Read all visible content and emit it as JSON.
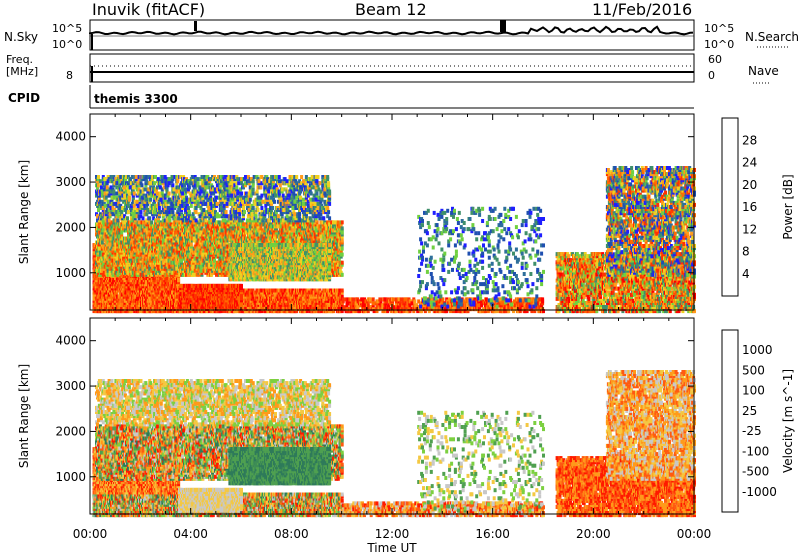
{
  "header": {
    "station": "Inuvik (fitACF)",
    "beam": "Beam 12",
    "date": "11/Feb/2016"
  },
  "summary": {
    "nsky_label": "N.Sky",
    "nsky_ticks": [
      "10^5",
      "10^0"
    ],
    "nsearch_label": "N.Search",
    "nsearch_ticks": [
      "10^5",
      "10^0"
    ],
    "freq_label": "Freq.",
    "freq_unit": "[MHz]",
    "freq_ticks": [
      "8"
    ],
    "nave_label": "Nave",
    "nave_ticks": [
      "60",
      "0"
    ],
    "cpid_label": "CPID",
    "cpid_value": "themis 3300"
  },
  "chart_data": [
    {
      "type": "heatmap",
      "title": "",
      "ylabel": "Slant Range [km]",
      "xlabel": "",
      "ylim": [
        180,
        4500
      ],
      "xlim": [
        "00:00",
        "24:00"
      ],
      "y_ticks": [
        1000,
        2000,
        3000,
        4000
      ],
      "colorbar": {
        "label": "Power [dB]",
        "ticks": [
          4,
          8,
          12,
          16,
          20,
          24,
          28
        ],
        "colors": [
          "#1e1eff",
          "#1f4fb0",
          "#2e6f9a",
          "#3f8f6a",
          "#6fd040",
          "#f0d020",
          "#ff9b1a",
          "#ff6a00",
          "#ff3200",
          "#ff0000"
        ]
      }
    },
    {
      "type": "heatmap",
      "title": "",
      "ylabel": "Slant Range [km]",
      "xlabel": "Time UT",
      "ylim": [
        180,
        4500
      ],
      "x_ticks": [
        "00:00",
        "04:00",
        "08:00",
        "12:00",
        "16:00",
        "20:00",
        "00:00"
      ],
      "y_ticks": [
        1000,
        2000,
        3000,
        4000
      ],
      "colorbar": {
        "label": "Velocity [m s^-1]",
        "ticks": [
          "1000",
          "500",
          "100",
          "25",
          "-25",
          "-100",
          "-500",
          "-1000"
        ],
        "colors": [
          "#1e3aa0",
          "#2f5fc0",
          "#2e7a5a",
          "#4fa050",
          "#7cd040",
          "#c8c8c8",
          "#f4c842",
          "#ff9a1a",
          "#ff5a10",
          "#ff1a00"
        ]
      }
    }
  ]
}
